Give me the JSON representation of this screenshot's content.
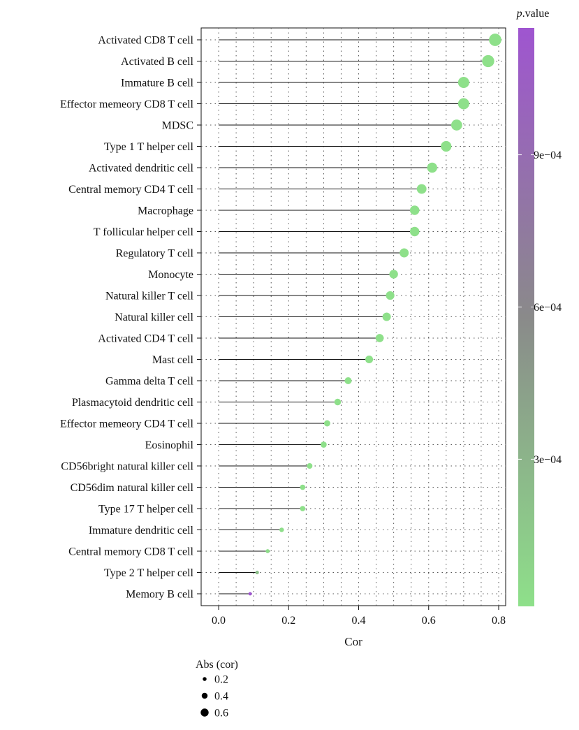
{
  "chart_data": {
    "type": "lollipop",
    "xlabel": "Cor",
    "xlim": [
      -0.05,
      0.82
    ],
    "xticks": [
      0.0,
      0.2,
      0.4,
      0.6,
      0.8
    ],
    "xtick_labels": [
      "0.0",
      "0.2",
      "0.4",
      "0.6",
      "0.8"
    ],
    "grid": "dotted",
    "categories": [
      "Activated CD8 T cell",
      "Activated B cell",
      "Immature B cell",
      "Effector memeory CD8 T cell",
      "MDSC",
      "Type 1 T helper cell",
      "Activated dendritic cell",
      "Central memory CD4 T cell",
      "Macrophage",
      "T follicular helper cell",
      "Regulatory T cell",
      "Monocyte",
      "Natural killer T cell",
      "Natural killer cell",
      "Activated CD4 T cell",
      "Mast cell",
      "Gamma delta T cell",
      "Plasmacytoid dendritic cell",
      "Effector memeory CD4 T cell",
      "Eosinophil",
      "CD56bright natural killer cell",
      "CD56dim natural killer cell",
      "Type 17 T helper cell",
      "Immature dendritic cell",
      "Central memory CD8 T cell",
      "Type 2 T helper cell",
      "Memory B cell"
    ],
    "values": [
      0.79,
      0.77,
      0.7,
      0.7,
      0.68,
      0.65,
      0.61,
      0.58,
      0.56,
      0.56,
      0.53,
      0.5,
      0.49,
      0.48,
      0.46,
      0.43,
      0.37,
      0.34,
      0.31,
      0.3,
      0.26,
      0.24,
      0.24,
      0.18,
      0.14,
      0.11,
      0.09
    ],
    "p_values": [
      1e-05,
      1e-05,
      1e-05,
      1e-05,
      1e-05,
      1e-05,
      1e-05,
      1e-05,
      1e-05,
      1e-05,
      1e-05,
      1e-05,
      1e-05,
      1e-05,
      1e-05,
      1e-05,
      1e-05,
      1e-05,
      1e-05,
      1e-05,
      1e-05,
      1e-05,
      1e-05,
      2e-05,
      3e-05,
      0.00022,
      0.00115
    ],
    "color_legend": {
      "title_italic": "p",
      "title_rest": ".value",
      "range": [
        1e-05,
        0.00115
      ],
      "ticks": [
        0.0003,
        0.0006,
        0.0009
      ],
      "tick_labels": [
        "3e−04",
        "6e−04",
        "9e−04"
      ],
      "color_low": "#8ee08a",
      "color_mid": "#8a8a8a",
      "color_high": "#9f55d0"
    },
    "size_legend": {
      "title": "Abs (cor)",
      "values": [
        0.2,
        0.4,
        0.6
      ],
      "labels": [
        "0.2",
        "0.4",
        "0.6"
      ]
    }
  }
}
